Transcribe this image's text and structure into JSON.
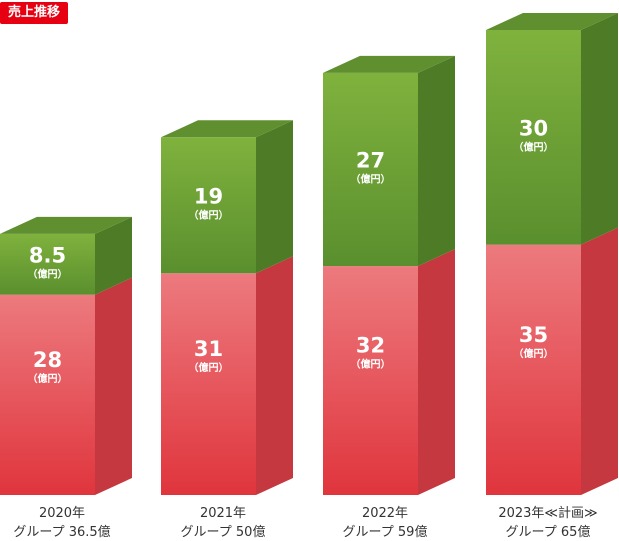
{
  "badge": "売上推移",
  "unit_label": "（億円）",
  "colors": {
    "badge": "#e60012",
    "top_segment_front": "#6fa33a",
    "bottom_segment_front": "#e5484f"
  },
  "chart_data": {
    "type": "bar",
    "stacked": true,
    "title": "売上推移",
    "categories": [
      "2020年",
      "2021年",
      "2022年",
      "2023年≪計画≫"
    ],
    "group_totals": [
      "グループ 36.5億",
      "グループ 50億",
      "グループ 59億",
      "グループ 65億"
    ],
    "series": [
      {
        "values": [
          28,
          31,
          32,
          35
        ],
        "labels": [
          "28",
          "31",
          "32",
          "35"
        ]
      },
      {
        "values": [
          8.5,
          19,
          27,
          30
        ],
        "labels": [
          "8.5",
          "19",
          "27",
          "30"
        ]
      }
    ],
    "totals": [
      36.5,
      50,
      59,
      65
    ],
    "unit": "億円",
    "ylim": [
      0,
      65
    ]
  }
}
